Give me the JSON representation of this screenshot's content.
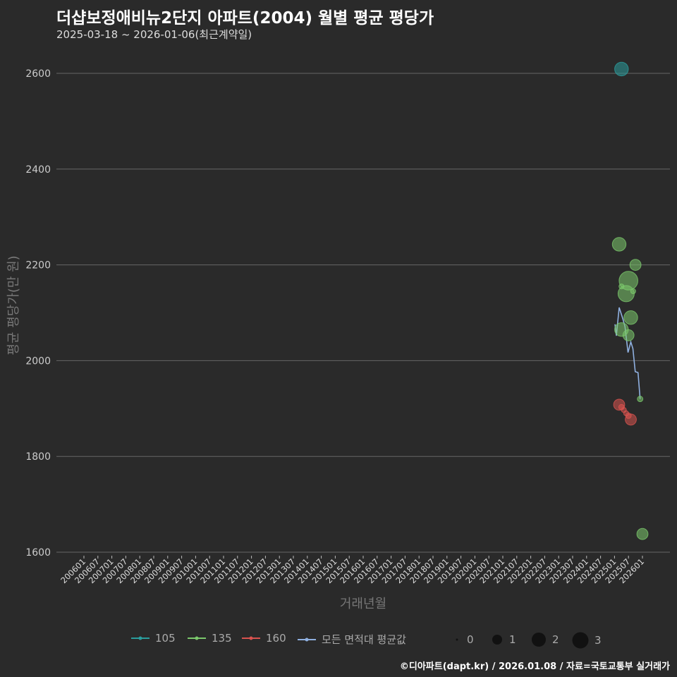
{
  "chart_data": {
    "type": "scatter",
    "title": "더샵보정애비뉴2단지 아파트(2004) 월별 평균 평당가",
    "subtitle": "2025-03-18 ~ 2026-01-06(최근계약일)",
    "xlabel": "거래년월",
    "ylabel": "평균 평당가(만 원)",
    "ylim": [
      1600,
      2600
    ],
    "yticks": [
      1600,
      1800,
      2000,
      2200,
      2400,
      2600
    ],
    "xticks": [
      "200601",
      "200607",
      "200701",
      "200707",
      "200801",
      "200807",
      "200901",
      "200907",
      "201001",
      "201007",
      "201101",
      "201107",
      "201201",
      "201207",
      "201301",
      "201307",
      "201401",
      "201407",
      "201501",
      "201507",
      "201601",
      "201607",
      "201701",
      "201707",
      "201801",
      "201807",
      "201901",
      "201907",
      "202001",
      "202007",
      "202101",
      "202107",
      "202201",
      "202207",
      "202301",
      "202307",
      "202401",
      "202407",
      "202501",
      "202507",
      "202601"
    ],
    "grid": true,
    "legend_placement": "bottom",
    "series": [
      {
        "name": "105",
        "color": "#2a9d9d",
        "points": [
          {
            "x": "202504",
            "y": 2609,
            "size": 2
          }
        ]
      },
      {
        "name": "135",
        "color": "#7bc86c",
        "points": [
          {
            "x": "202503",
            "y": 2243,
            "size": 2
          },
          {
            "x": "202510",
            "y": 2200,
            "size": 1.5
          },
          {
            "x": "202507",
            "y": 2167,
            "size": 3
          },
          {
            "x": "202504",
            "y": 2155,
            "size": 0.3
          },
          {
            "x": "202506",
            "y": 2140,
            "size": 2.5
          },
          {
            "x": "202509",
            "y": 2145,
            "size": 0.3
          },
          {
            "x": "202508",
            "y": 2090,
            "size": 2
          },
          {
            "x": "202504",
            "y": 2065,
            "size": 2
          },
          {
            "x": "202507",
            "y": 2053,
            "size": 1.5
          },
          {
            "x": "202512",
            "y": 1920,
            "size": 0.4
          },
          {
            "x": "202601",
            "y": 1638,
            "size": 1.5
          }
        ]
      },
      {
        "name": "160",
        "color": "#d9534f",
        "points": [
          {
            "x": "202503",
            "y": 1908,
            "size": 1.5
          },
          {
            "x": "202504",
            "y": 1903,
            "size": 0.4
          },
          {
            "x": "202505",
            "y": 1897,
            "size": 0.3
          },
          {
            "x": "202506",
            "y": 1890,
            "size": 0.3
          },
          {
            "x": "202507",
            "y": 1885,
            "size": 0.4
          },
          {
            "x": "202508",
            "y": 1877,
            "size": 1.5
          }
        ]
      }
    ],
    "average_line": {
      "name": "모든 면적대 평균값",
      "color": "#8fb0e0",
      "points": [
        [
          228.2,
          2076
        ],
        [
          228.8,
          2052
        ],
        [
          230.0,
          2111
        ],
        [
          231.6,
          2087
        ],
        [
          232.5,
          2071
        ],
        [
          233.8,
          2017
        ],
        [
          235.0,
          2039
        ],
        [
          235.9,
          2025
        ],
        [
          236.9,
          1977
        ],
        [
          238.1,
          1975
        ],
        [
          239.0,
          1920
        ]
      ]
    },
    "size_legend": [
      "0",
      "1",
      "2",
      "3"
    ],
    "caption": "©디아파트(dapt.kr) / 2026.01.08 / 자료=국토교통부 실거래가"
  }
}
